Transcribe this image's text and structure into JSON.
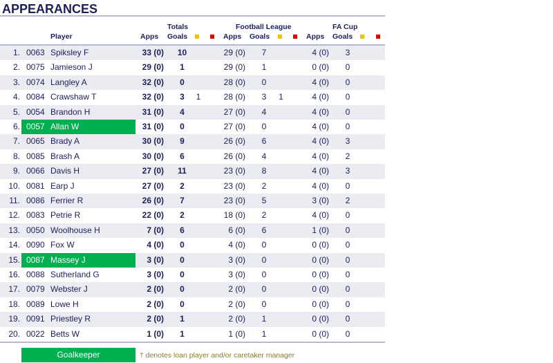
{
  "title": "APPEARANCES",
  "headers": {
    "player": "Player",
    "totals": "Totals",
    "league": "Football League",
    "cup": "FA Cup",
    "apps": "Apps",
    "goals": "Goals"
  },
  "colors": {
    "yellow_card": "#f5c000",
    "red_card": "#e00000",
    "goalkeeper": "#00b050"
  },
  "rows": [
    {
      "rank": "1.",
      "id": "0063",
      "name": "Spiksley F",
      "apps": "33 (0)",
      "goals": "10",
      "y": "",
      "r": "",
      "fl_apps": "29 (0)",
      "fl_goals": "7",
      "fl_y": "",
      "fl_r": "",
      "fa_apps": "4 (0)",
      "fa_goals": "3",
      "gk": false
    },
    {
      "rank": "2.",
      "id": "0075",
      "name": "Jamieson J",
      "apps": "29 (0)",
      "goals": "1",
      "y": "",
      "r": "",
      "fl_apps": "29 (0)",
      "fl_goals": "1",
      "fl_y": "",
      "fl_r": "",
      "fa_apps": "0 (0)",
      "fa_goals": "0",
      "gk": false
    },
    {
      "rank": "3.",
      "id": "0074",
      "name": "Langley A",
      "apps": "32 (0)",
      "goals": "0",
      "y": "",
      "r": "",
      "fl_apps": "28 (0)",
      "fl_goals": "0",
      "fl_y": "",
      "fl_r": "",
      "fa_apps": "4 (0)",
      "fa_goals": "0",
      "gk": false
    },
    {
      "rank": "4.",
      "id": "0084",
      "name": "Crawshaw T",
      "apps": "32 (0)",
      "goals": "3",
      "y": "1",
      "r": "",
      "fl_apps": "28 (0)",
      "fl_goals": "3",
      "fl_y": "1",
      "fl_r": "",
      "fa_apps": "4 (0)",
      "fa_goals": "0",
      "gk": false
    },
    {
      "rank": "5.",
      "id": "0054",
      "name": "Brandon H",
      "apps": "31 (0)",
      "goals": "4",
      "y": "",
      "r": "",
      "fl_apps": "27 (0)",
      "fl_goals": "4",
      "fl_y": "",
      "fl_r": "",
      "fa_apps": "4 (0)",
      "fa_goals": "0",
      "gk": false
    },
    {
      "rank": "6.",
      "id": "0057",
      "name": "Allan W",
      "apps": "31 (0)",
      "goals": "0",
      "y": "",
      "r": "",
      "fl_apps": "27 (0)",
      "fl_goals": "0",
      "fl_y": "",
      "fl_r": "",
      "fa_apps": "4 (0)",
      "fa_goals": "0",
      "gk": true
    },
    {
      "rank": "7.",
      "id": "0065",
      "name": "Brady A",
      "apps": "30 (0)",
      "goals": "9",
      "y": "",
      "r": "",
      "fl_apps": "26 (0)",
      "fl_goals": "6",
      "fl_y": "",
      "fl_r": "",
      "fa_apps": "4 (0)",
      "fa_goals": "3",
      "gk": false
    },
    {
      "rank": "8.",
      "id": "0085",
      "name": "Brash A",
      "apps": "30 (0)",
      "goals": "6",
      "y": "",
      "r": "",
      "fl_apps": "26 (0)",
      "fl_goals": "4",
      "fl_y": "",
      "fl_r": "",
      "fa_apps": "4 (0)",
      "fa_goals": "2",
      "gk": false
    },
    {
      "rank": "9.",
      "id": "0066",
      "name": "Davis H",
      "apps": "27 (0)",
      "goals": "11",
      "y": "",
      "r": "",
      "fl_apps": "23 (0)",
      "fl_goals": "8",
      "fl_y": "",
      "fl_r": "",
      "fa_apps": "4 (0)",
      "fa_goals": "3",
      "gk": false
    },
    {
      "rank": "10.",
      "id": "0081",
      "name": "Earp J",
      "apps": "27 (0)",
      "goals": "2",
      "y": "",
      "r": "",
      "fl_apps": "23 (0)",
      "fl_goals": "2",
      "fl_y": "",
      "fl_r": "",
      "fa_apps": "4 (0)",
      "fa_goals": "0",
      "gk": false
    },
    {
      "rank": "11.",
      "id": "0086",
      "name": "Ferrier R",
      "apps": "26 (0)",
      "goals": "7",
      "y": "",
      "r": "",
      "fl_apps": "23 (0)",
      "fl_goals": "5",
      "fl_y": "",
      "fl_r": "",
      "fa_apps": "3 (0)",
      "fa_goals": "2",
      "gk": false
    },
    {
      "rank": "12.",
      "id": "0083",
      "name": "Petrie R",
      "apps": "22 (0)",
      "goals": "2",
      "y": "",
      "r": "",
      "fl_apps": "18 (0)",
      "fl_goals": "2",
      "fl_y": "",
      "fl_r": "",
      "fa_apps": "4 (0)",
      "fa_goals": "0",
      "gk": false
    },
    {
      "rank": "13.",
      "id": "0050",
      "name": "Woolhouse H",
      "apps": "7 (0)",
      "goals": "6",
      "y": "",
      "r": "",
      "fl_apps": "6 (0)",
      "fl_goals": "6",
      "fl_y": "",
      "fl_r": "",
      "fa_apps": "1 (0)",
      "fa_goals": "0",
      "gk": false
    },
    {
      "rank": "14.",
      "id": "0090",
      "name": "Fox W",
      "apps": "4 (0)",
      "goals": "0",
      "y": "",
      "r": "",
      "fl_apps": "4 (0)",
      "fl_goals": "0",
      "fl_y": "",
      "fl_r": "",
      "fa_apps": "0 (0)",
      "fa_goals": "0",
      "gk": false
    },
    {
      "rank": "15.",
      "id": "0087",
      "name": "Massey J",
      "apps": "3 (0)",
      "goals": "0",
      "y": "",
      "r": "",
      "fl_apps": "3 (0)",
      "fl_goals": "0",
      "fl_y": "",
      "fl_r": "",
      "fa_apps": "0 (0)",
      "fa_goals": "0",
      "gk": true
    },
    {
      "rank": "16.",
      "id": "0088",
      "name": "Sutherland G",
      "apps": "3 (0)",
      "goals": "0",
      "y": "",
      "r": "",
      "fl_apps": "3 (0)",
      "fl_goals": "0",
      "fl_y": "",
      "fl_r": "",
      "fa_apps": "0 (0)",
      "fa_goals": "0",
      "gk": false
    },
    {
      "rank": "17.",
      "id": "0079",
      "name": "Webster J",
      "apps": "2 (0)",
      "goals": "0",
      "y": "",
      "r": "",
      "fl_apps": "2 (0)",
      "fl_goals": "0",
      "fl_y": "",
      "fl_r": "",
      "fa_apps": "0 (0)",
      "fa_goals": "0",
      "gk": false
    },
    {
      "rank": "18.",
      "id": "0089",
      "name": "Lowe H",
      "apps": "2 (0)",
      "goals": "0",
      "y": "",
      "r": "",
      "fl_apps": "2 (0)",
      "fl_goals": "0",
      "fl_y": "",
      "fl_r": "",
      "fa_apps": "0 (0)",
      "fa_goals": "0",
      "gk": false
    },
    {
      "rank": "19.",
      "id": "0091",
      "name": "Priestley R",
      "apps": "2 (0)",
      "goals": "1",
      "y": "",
      "r": "",
      "fl_apps": "2 (0)",
      "fl_goals": "1",
      "fl_y": "",
      "fl_r": "",
      "fa_apps": "0 (0)",
      "fa_goals": "0",
      "gk": false
    },
    {
      "rank": "20.",
      "id": "0022",
      "name": "Betts W",
      "apps": "1 (0)",
      "goals": "1",
      "y": "",
      "r": "",
      "fl_apps": "1 (0)",
      "fl_goals": "1",
      "fl_y": "",
      "fl_r": "",
      "fa_apps": "0 (0)",
      "fa_goals": "0",
      "gk": false
    }
  ],
  "legend": {
    "goalkeeper": "Goalkeeper",
    "note": "† denotes loan player and/or caretaker manager"
  }
}
